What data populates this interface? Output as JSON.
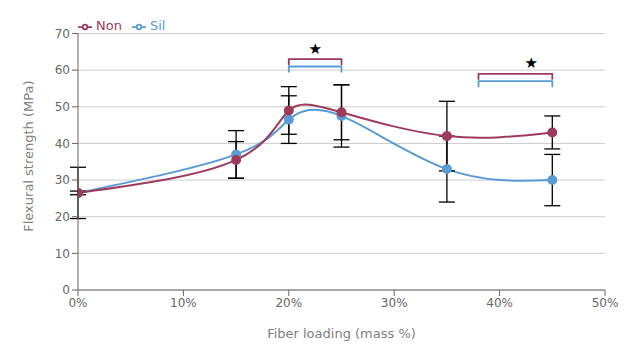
{
  "chart_data": {
    "type": "line",
    "x": [
      0,
      15,
      20,
      25,
      35,
      45
    ],
    "xlabel": "Fiber loading (mass %)",
    "ylabel": "Flexural strength (MPa)",
    "series": [
      {
        "name": "Sil",
        "color": "#5B9BD5",
        "marker": "circle",
        "line_style": "solid",
        "values": [
          26.5,
          37.0,
          46.5,
          47.5,
          33.0,
          30.0
        ],
        "error": [
          7.0,
          6.5,
          6.5,
          8.5,
          9.0,
          7.0
        ]
      },
      {
        "name": "Non",
        "color": "#9E3A5A",
        "marker": "circle",
        "line_style": "solid",
        "values": [
          26.5,
          35.5,
          49.0,
          48.5,
          42.0,
          43.0
        ],
        "error": [
          0.5,
          5.0,
          6.5,
          7.5,
          9.5,
          4.5
        ]
      }
    ],
    "xlim": [
      0,
      50
    ],
    "xticks": [
      {
        "value": 0,
        "label": "0%"
      },
      {
        "value": 10,
        "label": "10%"
      },
      {
        "value": 20,
        "label": "20%"
      },
      {
        "value": 30,
        "label": "30%"
      },
      {
        "value": 40,
        "label": "40%"
      },
      {
        "value": 50,
        "label": "50%"
      }
    ],
    "ylim": [
      0,
      70
    ],
    "yticks": [
      0,
      10,
      20,
      30,
      40,
      50,
      60,
      70
    ],
    "grid": true,
    "legend": "upper left",
    "annotations": [
      {
        "type": "bracket",
        "x1": 20,
        "x2": 25,
        "y": 63,
        "color": "#9E3A5A"
      },
      {
        "type": "bracket",
        "x1": 20,
        "x2": 25,
        "y": 61,
        "color": "#5B9BD5"
      },
      {
        "text": "★",
        "x": 22.5,
        "y": 64.5
      },
      {
        "type": "bracket",
        "x1": 38,
        "x2": 45,
        "y": 59,
        "color": "#9E3A5A"
      },
      {
        "type": "bracket",
        "x1": 38,
        "x2": 45,
        "y": 57,
        "color": "#5B9BD5"
      },
      {
        "text": "★",
        "x": 43,
        "y": 60.5
      }
    ]
  }
}
